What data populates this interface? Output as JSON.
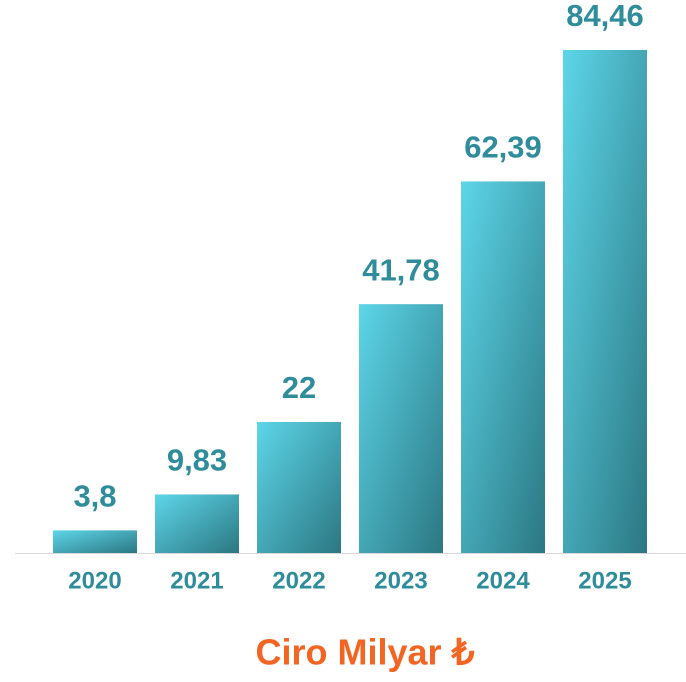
{
  "chart_data": {
    "type": "bar",
    "title": "Ciro Milyar ₺",
    "categories": [
      "2020",
      "2021",
      "2022",
      "2023",
      "2024",
      "2025"
    ],
    "values": [
      3.8,
      9.83,
      22,
      41.78,
      62.39,
      84.46
    ],
    "value_labels": [
      "3,8",
      "9,83",
      "22",
      "41,78",
      "62,39",
      "84,46"
    ],
    "color": "#5dd6e9"
  }
}
